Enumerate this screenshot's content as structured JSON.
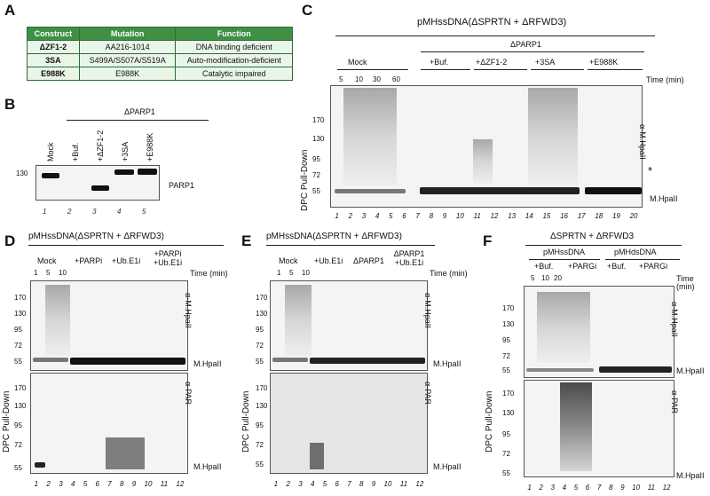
{
  "panels": {
    "A": "A",
    "B": "B",
    "C": "C",
    "D": "D",
    "E": "E",
    "F": "F"
  },
  "tableA": {
    "headers": [
      "Construct",
      "Mutation",
      "Function"
    ],
    "rows": [
      [
        "ΔZF1-2",
        "AA216-1014",
        "DNA binding deficient"
      ],
      [
        "3SA",
        "S499A/S507A/S519A",
        "Auto-modification-deficient"
      ],
      [
        "E988K",
        "E988K",
        "Catalytic impaired"
      ]
    ]
  },
  "panelB": {
    "group": "ΔPARP1",
    "lanes": [
      "Mock",
      "+Buf.",
      "+ΔZF1-2",
      "+3SA",
      "+E988K"
    ],
    "lane_numbers": [
      "1",
      "2",
      "3",
      "4",
      "5"
    ],
    "marker": "130",
    "band_label": "PARP1"
  },
  "panelC": {
    "title": "pMHssDNA(ΔSPRTN + ΔRFWD3)",
    "group": "ΔPARP1",
    "conditions": [
      "Mock",
      "+Buf.",
      "+ΔZF1-2",
      "+3SA",
      "+E988K"
    ],
    "times": [
      "5",
      "10",
      "30",
      "60"
    ],
    "time_label": "Time (min)",
    "side_label": "DPC Pull-Down",
    "antibody": "α-M.HpaII",
    "markers": [
      "170",
      "130",
      "95",
      "72",
      "55"
    ],
    "asterisk": "*",
    "band_label": "M.HpaII",
    "lane_numbers": [
      "1",
      "2",
      "3",
      "4",
      "5",
      "6",
      "7",
      "8",
      "9",
      "10",
      "11",
      "12",
      "13",
      "14",
      "15",
      "16",
      "17",
      "18",
      "19",
      "20"
    ]
  },
  "panelD": {
    "title": "pMHssDNA(ΔSPRTN + ΔRFWD3)",
    "conditions": [
      "Mock",
      "+PARPi",
      "+Ub.E1i",
      "+PARPi +Ub.E1i"
    ],
    "times": [
      "1",
      "5",
      "10"
    ],
    "time_label": "Time (min)",
    "side_label": "DPC Pull-Down",
    "antibody_top": "α-M.HpaII",
    "antibody_bottom": "α-PAR",
    "markers": [
      "170",
      "130",
      "95",
      "72",
      "55"
    ],
    "band_label": "M.HpaII",
    "lane_numbers": [
      "1",
      "2",
      "3",
      "4",
      "5",
      "6",
      "7",
      "8",
      "9",
      "10",
      "11",
      "12"
    ]
  },
  "panelE": {
    "title": "pMHssDNA(ΔSPRTN + ΔRFWD3)",
    "conditions": [
      "Mock",
      "+Ub.E1i",
      "ΔPARP1",
      "ΔPARP1 +Ub.E1i"
    ],
    "times": [
      "1",
      "5",
      "10"
    ],
    "time_label": "Time (min)",
    "side_label": "DPC Pull-Down",
    "antibody_top": "α-M.HpaII",
    "antibody_bottom": "α-PAR",
    "markers": [
      "170",
      "130",
      "95",
      "72",
      "55"
    ],
    "band_label": "M.HpaII",
    "lane_numbers": [
      "1",
      "2",
      "3",
      "4",
      "5",
      "6",
      "7",
      "8",
      "9",
      "10",
      "11",
      "12"
    ]
  },
  "panelF": {
    "title": "ΔSPRTN + ΔRFWD3",
    "substrates": [
      "pMHssDNA",
      "pMHdsDNA"
    ],
    "conditions": [
      "+Buf.",
      "+PARGi",
      "+Buf.",
      "+PARGi"
    ],
    "times": [
      "5",
      "10",
      "20"
    ],
    "time_label": "Time (min)",
    "side_label": "DPC Pull-Down",
    "antibody_top": "α-M.HpaII",
    "antibody_bottom": "α-PAR",
    "markers": [
      "170",
      "130",
      "95",
      "72",
      "55"
    ],
    "band_label": "M.HpaII",
    "lane_numbers": [
      "1",
      "2",
      "3",
      "4",
      "5",
      "6",
      "7",
      "8",
      "9",
      "10",
      "11",
      "12"
    ]
  }
}
